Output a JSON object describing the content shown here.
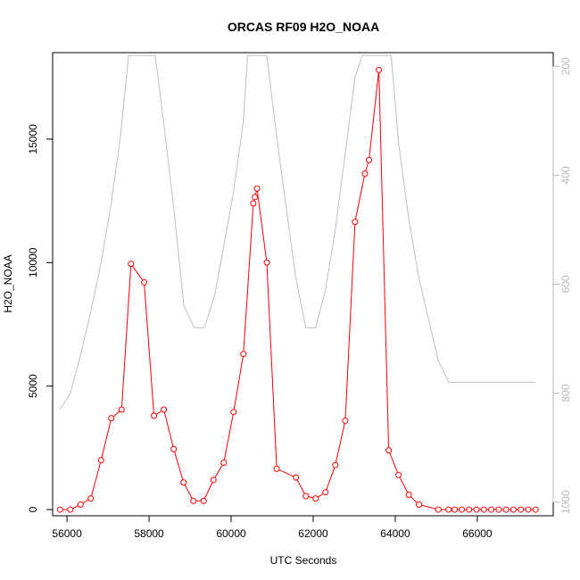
{
  "chart_data": {
    "type": "line",
    "title": "ORCAS RF09 H2O_NOAA",
    "xlabel": "UTC Seconds",
    "ylabel": "H2O_NOAA",
    "xlim": [
      55650,
      67850
    ],
    "ylim": [
      -250,
      18500
    ],
    "x_ticks": [
      56000,
      58000,
      60000,
      62000,
      64000,
      66000
    ],
    "y_ticks": [
      0,
      5000,
      10000,
      15000
    ],
    "y2_lim": [
      1025,
      175
    ],
    "y2_ticks": [
      200,
      400,
      600,
      800,
      1000
    ],
    "grid": false,
    "legend": "none",
    "colors": {
      "primary": "#ff0000",
      "secondary": "#bebebe"
    },
    "series": [
      {
        "axis": "left",
        "style": "line+circle",
        "color": "#ff0000",
        "x": [
          55830,
          56080,
          56330,
          56580,
          56830,
          57080,
          57330,
          57560,
          57880,
          58120,
          58360,
          58600,
          58840,
          59080,
          59330,
          59570,
          59820,
          60060,
          60300,
          60540,
          60580,
          60630,
          60870,
          61110,
          61580,
          61820,
          62060,
          62300,
          62540,
          62780,
          63020,
          63260,
          63360,
          63600,
          63840,
          64080,
          64330,
          64580,
          65050,
          65300,
          65450,
          65620,
          65800,
          65980,
          66160,
          66340,
          66520,
          66700,
          66880,
          67060,
          67240,
          67420
        ],
        "y": [
          0,
          0,
          200,
          450,
          2000,
          3700,
          4050,
          9950,
          9200,
          3800,
          4050,
          2450,
          1100,
          350,
          350,
          1200,
          1900,
          3950,
          6300,
          12400,
          12650,
          13000,
          10000,
          1650,
          1300,
          550,
          450,
          700,
          1800,
          3600,
          11650,
          13600,
          14150,
          17800,
          2400,
          1400,
          600,
          200,
          0,
          0,
          0,
          0,
          0,
          0,
          0,
          0,
          0,
          0,
          0,
          0,
          0,
          0
        ]
      },
      {
        "axis": "right",
        "style": "line",
        "color": "#bebebe",
        "x": [
          55830,
          56080,
          56330,
          56580,
          56830,
          57080,
          57300,
          57500,
          58150,
          58350,
          58600,
          58850,
          59100,
          59350,
          59600,
          59820,
          60060,
          60300,
          60400,
          60870,
          61110,
          61360,
          61580,
          61820,
          62060,
          62300,
          62540,
          62780,
          63020,
          63200,
          63900,
          64080,
          64330,
          64580,
          65050,
          65300,
          67420
        ],
        "y": [
          830,
          800,
          730,
          650,
          560,
          450,
          330,
          180,
          180,
          300,
          460,
          640,
          680,
          680,
          620,
          530,
          430,
          300,
          180,
          180,
          330,
          470,
          590,
          680,
          680,
          610,
          500,
          360,
          220,
          180,
          180,
          340,
          480,
          590,
          740,
          780,
          780
        ]
      }
    ]
  }
}
